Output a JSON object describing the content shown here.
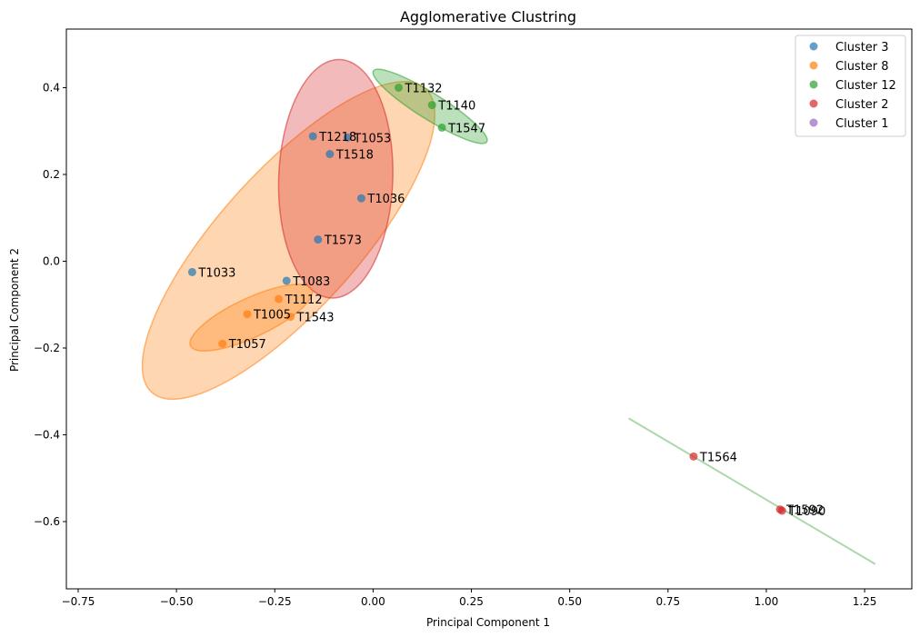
{
  "chart_data": {
    "type": "scatter",
    "title": "Agglomerative Clustring",
    "xlabel": "Principal Component 1",
    "ylabel": "Principal Component 2",
    "xlim": [
      -0.78,
      1.37
    ],
    "ylim": [
      -0.755,
      0.535
    ],
    "xticks": [
      -0.75,
      -0.5,
      -0.25,
      0.0,
      0.25,
      0.5,
      0.75,
      1.0,
      1.25
    ],
    "xtick_labels": [
      "−0.75",
      "−0.50",
      "−0.25",
      "0.00",
      "0.25",
      "0.50",
      "0.75",
      "1.00",
      "1.25"
    ],
    "yticks": [
      -0.6,
      -0.4,
      -0.2,
      0.0,
      0.2,
      0.4
    ],
    "ytick_labels": [
      "−0.6",
      "−0.4",
      "−0.2",
      "0.0",
      "0.2",
      "0.4"
    ],
    "grid": false,
    "legend_position": "top-right",
    "series": [
      {
        "name": "Cluster 3",
        "color": "#1f77b4",
        "points": [
          {
            "label": "T1218",
            "x": -0.153,
            "y": 0.288
          },
          {
            "label": "T1053",
            "x": -0.065,
            "y": 0.285
          },
          {
            "label": "T1518",
            "x": -0.11,
            "y": 0.247
          },
          {
            "label": "T1036",
            "x": -0.03,
            "y": 0.145
          },
          {
            "label": "T1573",
            "x": -0.14,
            "y": 0.05
          },
          {
            "label": "T1033",
            "x": -0.46,
            "y": -0.025
          },
          {
            "label": "T1083",
            "x": -0.22,
            "y": -0.045
          }
        ]
      },
      {
        "name": "Cluster 8",
        "color": "#ff7f0e",
        "points": [
          {
            "label": "T1112",
            "x": -0.24,
            "y": -0.087
          },
          {
            "label": "T1005",
            "x": -0.32,
            "y": -0.122
          },
          {
            "label": "T1543",
            "x": -0.21,
            "y": -0.128
          },
          {
            "label": "T1057",
            "x": -0.383,
            "y": -0.19
          }
        ]
      },
      {
        "name": "Cluster 12",
        "color": "#2ca02c",
        "points": [
          {
            "label": "T1132",
            "x": 0.065,
            "y": 0.4
          },
          {
            "label": "T1140",
            "x": 0.15,
            "y": 0.36
          },
          {
            "label": "T1547",
            "x": 0.175,
            "y": 0.308
          }
        ]
      },
      {
        "name": "Cluster 2",
        "color": "#d62728",
        "points": [
          {
            "label": "T1564",
            "x": 0.815,
            "y": -0.45
          },
          {
            "label": "T1592",
            "x": 1.035,
            "y": -0.572
          },
          {
            "label": "T1090",
            "x": 1.04,
            "y": -0.575
          }
        ]
      },
      {
        "name": "Cluster 1",
        "color": "#9467bd",
        "points": []
      }
    ],
    "ellipses": [
      {
        "cluster": "Cluster 8",
        "color": "#ff7f0e",
        "cx": -0.215,
        "cy": 0.048,
        "rx": 0.52,
        "ry": 0.16,
        "angle_deg": 48
      },
      {
        "cluster": "Cluster 2",
        "color": "#d62728",
        "cx": -0.095,
        "cy": 0.19,
        "rx": 0.145,
        "ry": 0.275,
        "angle_deg": -2
      },
      {
        "cluster": "Cluster 12",
        "color": "#2ca02c",
        "cx": 0.145,
        "cy": 0.357,
        "rx": 0.17,
        "ry": 0.03,
        "angle_deg": -32
      },
      {
        "cluster": "Cluster 8",
        "color": "#ff7f0e",
        "cx": -0.31,
        "cy": -0.13,
        "rx": 0.17,
        "ry": 0.045,
        "angle_deg": 25
      }
    ],
    "lines": [
      {
        "cluster": "Cluster 12",
        "color": "#2ca02c",
        "x1": 0.65,
        "y1": -0.362,
        "x2": 1.277,
        "y2": -0.698
      }
    ]
  }
}
